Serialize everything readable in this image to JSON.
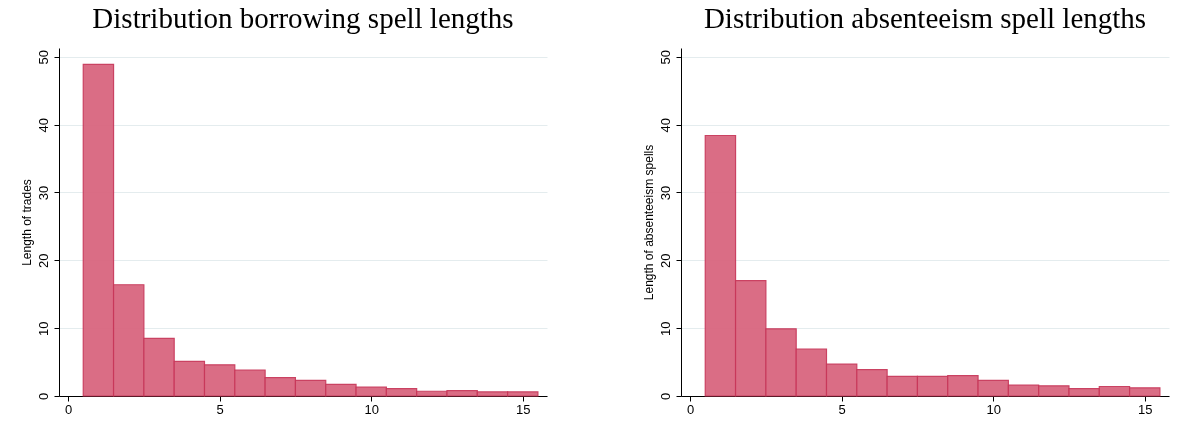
{
  "chart_data": [
    {
      "type": "histogram",
      "title": "Distribution borrowing spell lengths",
      "ylabel": "Length of trades",
      "bins": [
        0.5,
        1.5,
        2.5,
        3.5,
        4.5,
        5.5,
        6.5,
        7.5,
        8.5,
        9.5,
        10.5,
        11.5,
        12.5,
        13.5,
        14.5,
        15.5
      ],
      "values": [
        48.9,
        16.4,
        8.5,
        5.1,
        4.6,
        3.8,
        2.7,
        2.3,
        1.7,
        1.3,
        1.1,
        0.7,
        0.8,
        0.6,
        0.6
      ],
      "color": "#d9667f",
      "xlim": [
        -0.3,
        15.8
      ],
      "xticks": [
        0,
        5,
        10,
        15
      ],
      "ylim": [
        0,
        51.3
      ],
      "yticks": [
        0,
        10,
        20,
        30,
        40,
        50
      ],
      "grid": "y"
    },
    {
      "type": "histogram",
      "title": "Distribution absenteeism spell lengths",
      "ylabel": "Length of absenteeism spells",
      "bins": [
        0.5,
        1.5,
        2.5,
        3.5,
        4.5,
        5.5,
        6.5,
        7.5,
        8.5,
        9.5,
        10.5,
        11.5,
        12.5,
        13.5,
        14.5,
        15.5
      ],
      "values": [
        38.4,
        17.0,
        9.9,
        6.9,
        4.7,
        3.9,
        2.9,
        2.9,
        3.0,
        2.3,
        1.6,
        1.5,
        1.1,
        1.4,
        1.2
      ],
      "color": "#d9667f",
      "xlim": [
        -0.3,
        15.8
      ],
      "xticks": [
        0,
        5,
        10,
        15
      ],
      "ylim": [
        0,
        51.3
      ],
      "yticks": [
        0,
        10,
        20,
        30,
        40,
        50
      ],
      "grid": "y"
    }
  ]
}
